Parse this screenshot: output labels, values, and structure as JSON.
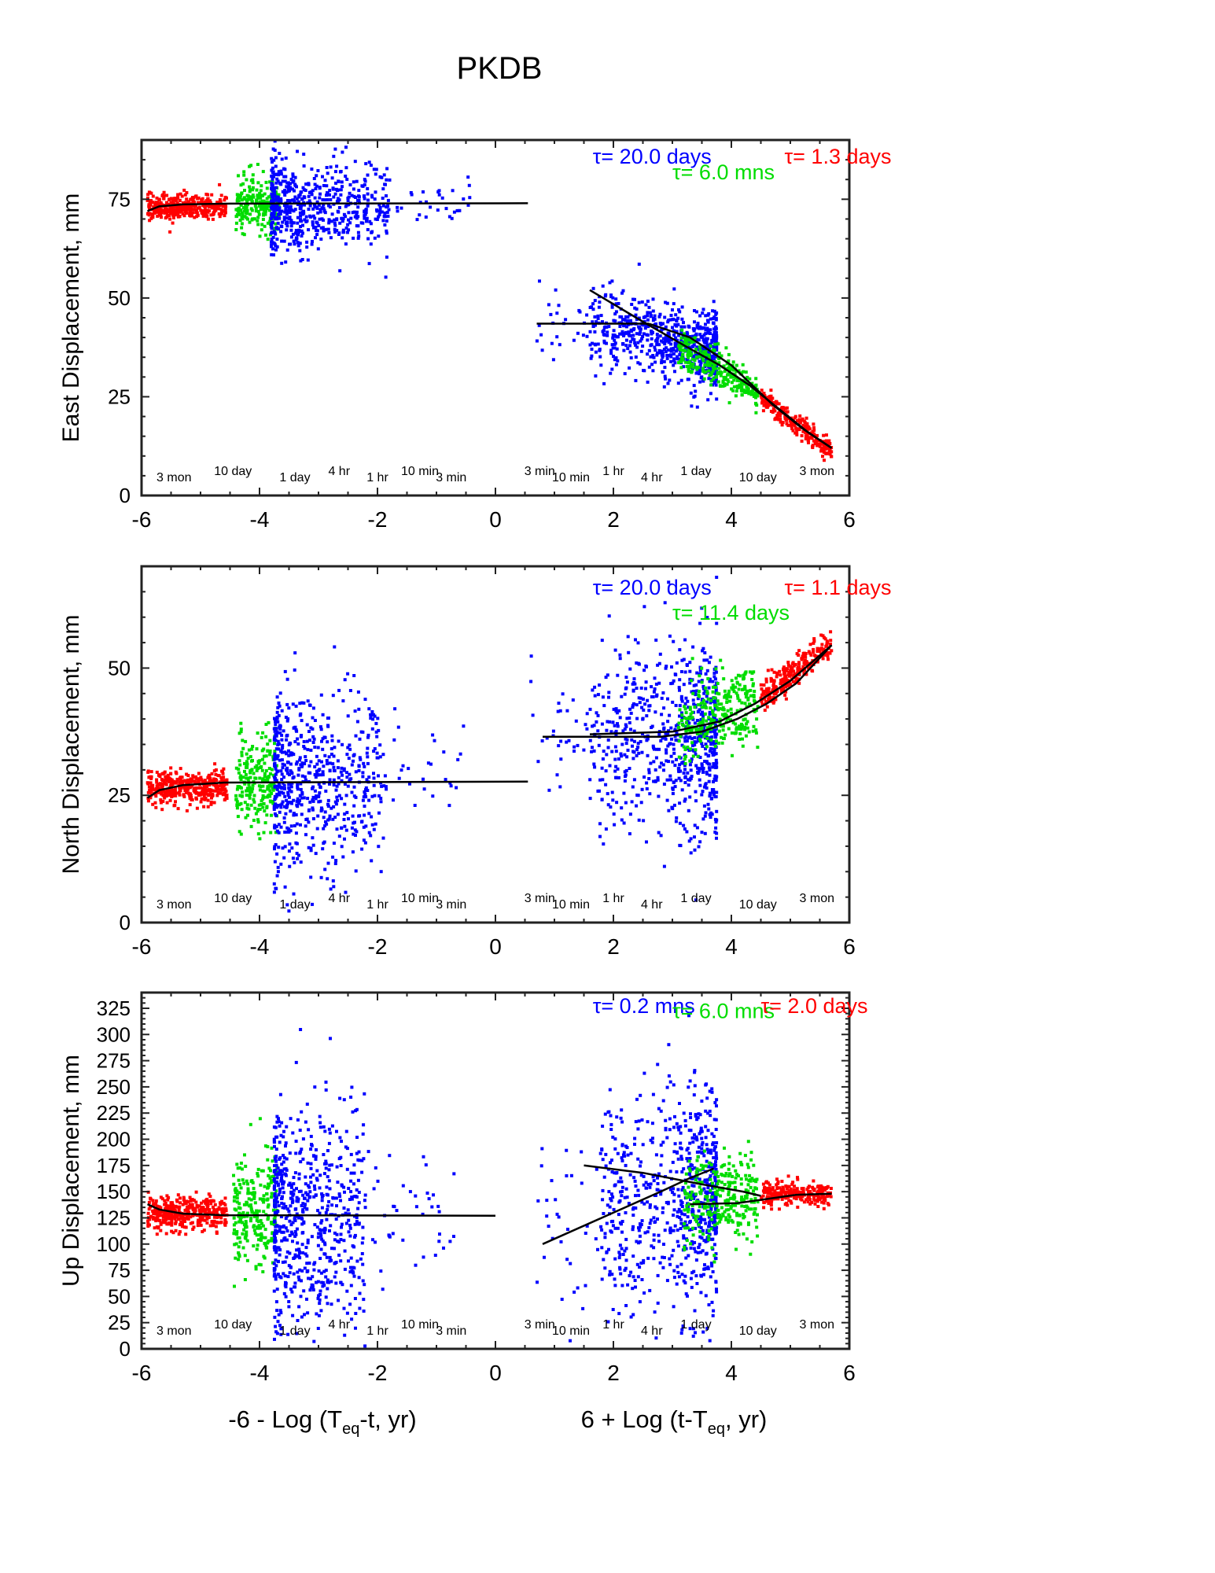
{
  "figure": {
    "title": "PKDB"
  },
  "colors": {
    "red": "#ff0000",
    "green": "#00dd00",
    "blue": "#0000ff",
    "fit": "#000000"
  },
  "x_axis": {
    "range": [
      -6,
      6
    ],
    "ticks": [
      -6,
      -4,
      -2,
      0,
      2,
      4,
      6
    ],
    "label_left": {
      "pre": "-6 - Log (T",
      "sub": "eq",
      "post": "-t, yr)"
    },
    "label_right": {
      "pre": "6 + Log (t-T",
      "sub": "eq",
      "post": ", yr)"
    },
    "time_labels": [
      {
        "x": -5.45,
        "text": "3 mon"
      },
      {
        "x": -4.45,
        "text": "10 day"
      },
      {
        "x": -3.4,
        "text": "1 day"
      },
      {
        "x": -2.65,
        "text": "4 hr"
      },
      {
        "x": -2.0,
        "text": "1 hr"
      },
      {
        "x": -1.28,
        "text": "10 min"
      },
      {
        "x": -0.75,
        "text": "3 min"
      },
      {
        "x": 0.75,
        "text": "3 min"
      },
      {
        "x": 1.28,
        "text": "10 min"
      },
      {
        "x": 2.0,
        "text": "1 hr"
      },
      {
        "x": 2.65,
        "text": "4 hr"
      },
      {
        "x": 3.4,
        "text": "1 day"
      },
      {
        "x": 4.45,
        "text": "10 day"
      },
      {
        "x": 5.45,
        "text": "3 mon"
      }
    ]
  },
  "chart_data": [
    {
      "type": "scatter",
      "ylabel": "East Displacement, mm",
      "ylim": [
        0,
        90
      ],
      "yticks": [
        0,
        25,
        50,
        75
      ],
      "annotations": [
        {
          "text": "τ= 20.0 days",
          "color": "blue",
          "x": 1.65,
          "y": 86
        },
        {
          "text": "τ= 6.0 mns",
          "color": "green",
          "x": 3.0,
          "y": 82
        },
        {
          "text": "τ= 1.3 days",
          "color": "red",
          "x": 4.9,
          "y": 86
        }
      ],
      "groups": [
        {
          "color": "red",
          "x": [
            -5.9,
            -4.55
          ],
          "level": 73,
          "spread": 1.6,
          "n": 380,
          "shape": "uniform"
        },
        {
          "color": "green",
          "x": [
            -4.4,
            -3.65
          ],
          "level": 74,
          "spread": 3.5,
          "n": 220,
          "shape": "uniform"
        },
        {
          "color": "blue",
          "x": [
            -3.8,
            -1.8
          ],
          "level": 73,
          "spread": 6,
          "n": 600,
          "shape": "decay"
        },
        {
          "color": "blue",
          "x": [
            -1.8,
            -0.4
          ],
          "level": 74,
          "spread": 3,
          "n": 30,
          "shape": "uniform"
        },
        {
          "color": "blue",
          "x": [
            0.7,
            1.6
          ],
          "level": 44,
          "spread": 4,
          "n": 25,
          "shape": "uniform"
        },
        {
          "color": "blue",
          "x": [
            1.6,
            3.75
          ],
          "line": [
            [
              1.6,
              44
            ],
            [
              3.75,
              36
            ]
          ],
          "spread": 5,
          "n": 700,
          "shape": "rise"
        },
        {
          "color": "green",
          "x": [
            3.1,
            4.45
          ],
          "line": [
            [
              3.1,
              38
            ],
            [
              4.45,
              26
            ]
          ],
          "spread": 2.5,
          "n": 280,
          "shape": "uniform"
        },
        {
          "color": "red",
          "x": [
            4.5,
            5.7
          ],
          "line": [
            [
              4.5,
              25
            ],
            [
              5.7,
              11
            ]
          ],
          "spread": 1.3,
          "n": 260,
          "shape": "uniform"
        }
      ],
      "fits": [
        [
          [
            -5.9,
            72
          ],
          [
            -5.7,
            73.2
          ],
          [
            -5.3,
            73.7
          ],
          [
            -4.5,
            73.9
          ],
          [
            0.55,
            74
          ]
        ],
        [
          [
            0.7,
            43.5
          ],
          [
            2.6,
            43.5
          ]
        ],
        [
          [
            1.6,
            52
          ],
          [
            2.5,
            44
          ],
          [
            3.2,
            38
          ],
          [
            3.8,
            33
          ],
          [
            4.3,
            28
          ],
          [
            4.8,
            22
          ],
          [
            5.3,
            16
          ],
          [
            5.7,
            12
          ]
        ],
        [
          [
            2.6,
            43.5
          ],
          [
            3.3,
            40
          ],
          [
            4.0,
            33
          ],
          [
            4.7,
            23
          ],
          [
            5.2,
            17
          ],
          [
            5.7,
            12
          ]
        ]
      ]
    },
    {
      "type": "scatter",
      "ylabel": "North Displacement, mm",
      "ylim": [
        0,
        70
      ],
      "yticks": [
        0,
        25,
        50
      ],
      "annotations": [
        {
          "text": "τ= 20.0 days",
          "color": "blue",
          "x": 1.65,
          "y": 66
        },
        {
          "text": "τ= 11.4 days",
          "color": "green",
          "x": 3.0,
          "y": 61
        },
        {
          "text": "τ= 1.1 days",
          "color": "red",
          "x": 4.9,
          "y": 66
        }
      ],
      "groups": [
        {
          "color": "red",
          "x": [
            -5.9,
            -4.55
          ],
          "level": 26.5,
          "spread": 1.6,
          "n": 380,
          "shape": "uniform"
        },
        {
          "color": "green",
          "x": [
            -4.4,
            -3.7
          ],
          "level": 28,
          "spread": 4.5,
          "n": 220,
          "shape": "uniform"
        },
        {
          "color": "blue",
          "x": [
            -3.75,
            -1.9
          ],
          "level": 28,
          "spread": 9,
          "n": 620,
          "shape": "decay"
        },
        {
          "color": "blue",
          "x": [
            -1.9,
            -0.4
          ],
          "level": 31,
          "spread": 5,
          "n": 30,
          "shape": "uniform"
        },
        {
          "color": "blue",
          "x": [
            0.6,
            1.6
          ],
          "level": 38,
          "spread": 6,
          "n": 30,
          "shape": "uniform"
        },
        {
          "color": "blue",
          "x": [
            1.6,
            3.75
          ],
          "level": 36,
          "spread": 10,
          "n": 700,
          "shape": "rise"
        },
        {
          "color": "green",
          "x": [
            3.1,
            4.45
          ],
          "line": [
            [
              3.1,
              39
            ],
            [
              4.45,
              43
            ]
          ],
          "spread": 4,
          "n": 280,
          "shape": "uniform"
        },
        {
          "color": "red",
          "x": [
            4.5,
            5.7
          ],
          "line": [
            [
              4.5,
              44
            ],
            [
              5.7,
              55
            ]
          ],
          "spread": 1.5,
          "n": 260,
          "shape": "uniform"
        }
      ],
      "fits": [
        [
          [
            -5.9,
            24.5
          ],
          [
            -5.7,
            26
          ],
          [
            -5.3,
            27
          ],
          [
            -4.6,
            27.5
          ],
          [
            0.55,
            27.7
          ]
        ],
        [
          [
            0.8,
            36.5
          ],
          [
            2.8,
            36.5
          ],
          [
            3.5,
            37.5
          ],
          [
            4.1,
            40
          ],
          [
            4.6,
            43
          ],
          [
            5.1,
            47
          ],
          [
            5.7,
            54.5
          ]
        ],
        [
          [
            1.6,
            37
          ],
          [
            3.0,
            37.5
          ],
          [
            3.8,
            39.5
          ],
          [
            4.4,
            43
          ],
          [
            5.0,
            47.5
          ],
          [
            5.7,
            54.5
          ]
        ]
      ]
    },
    {
      "type": "scatter",
      "ylabel": "Up Displacement, mm",
      "ylim": [
        0,
        340
      ],
      "yticks": [
        0,
        25,
        50,
        75,
        100,
        125,
        150,
        175,
        200,
        225,
        250,
        275,
        300,
        325
      ],
      "annotations": [
        {
          "text": "τ= 0.2 mns",
          "color": "blue",
          "x": 1.65,
          "y": 328
        },
        {
          "text": "τ= 6.0 mns",
          "color": "green",
          "x": 3.0,
          "y": 323
        },
        {
          "text": "τ= 2.0 days",
          "color": "red",
          "x": 4.5,
          "y": 328
        }
      ],
      "groups": [
        {
          "color": "red",
          "x": [
            -5.9,
            -4.55
          ],
          "level": 130,
          "spread": 8,
          "n": 380,
          "shape": "uniform"
        },
        {
          "color": "green",
          "x": [
            -4.45,
            -3.7
          ],
          "level": 130,
          "spread": 28,
          "n": 240,
          "shape": "uniform"
        },
        {
          "color": "blue",
          "x": [
            -3.75,
            -2.2
          ],
          "level": 125,
          "spread": 55,
          "n": 650,
          "shape": "decay"
        },
        {
          "color": "blue",
          "x": [
            -2.2,
            -0.6
          ],
          "level": 125,
          "spread": 30,
          "n": 40,
          "shape": "uniform"
        },
        {
          "color": "blue",
          "x": [
            0.7,
            1.8
          ],
          "level": 120,
          "spread": 45,
          "n": 35,
          "shape": "uniform"
        },
        {
          "color": "blue",
          "x": [
            1.8,
            3.75
          ],
          "level": 140,
          "spread": 55,
          "n": 700,
          "shape": "rise"
        },
        {
          "color": "green",
          "x": [
            3.2,
            4.45
          ],
          "level": 145,
          "spread": 22,
          "n": 280,
          "shape": "uniform"
        },
        {
          "color": "red",
          "x": [
            4.5,
            5.7
          ],
          "level": 148,
          "spread": 6,
          "n": 260,
          "shape": "uniform"
        }
      ],
      "fits": [
        [
          [
            -5.9,
            138
          ],
          [
            -5.7,
            133
          ],
          [
            -5.3,
            129
          ],
          [
            -4.6,
            127.5
          ],
          [
            0.0,
            127
          ]
        ],
        [
          [
            0.8,
            100
          ],
          [
            1.8,
            125
          ],
          [
            2.8,
            150
          ],
          [
            3.3,
            163
          ],
          [
            3.7,
            172
          ]
        ],
        [
          [
            1.5,
            175
          ],
          [
            2.5,
            168
          ],
          [
            3.5,
            157
          ],
          [
            4.2,
            150
          ],
          [
            4.5,
            146
          ]
        ],
        [
          [
            3.3,
            138
          ],
          [
            4.1,
            139
          ],
          [
            4.6,
            143
          ],
          [
            5.1,
            147
          ],
          [
            5.7,
            148
          ]
        ]
      ]
    }
  ]
}
